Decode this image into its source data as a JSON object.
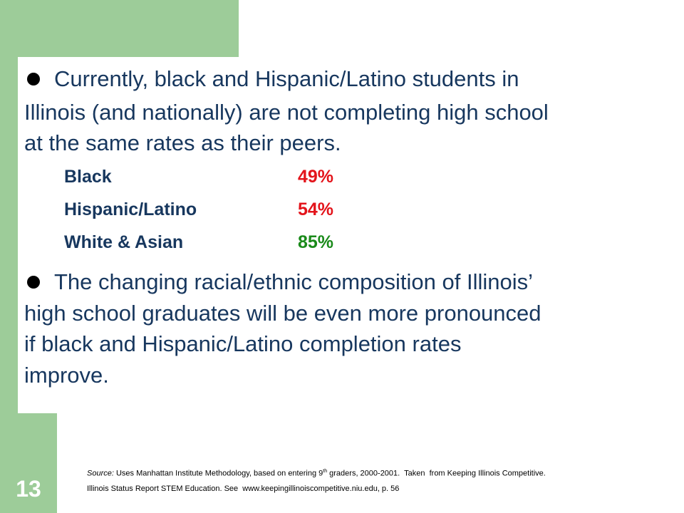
{
  "bullets": [
    {
      "lines": [
        "Currently, black and Hispanic/Latino students in",
        "Illinois (and nationally) are not completing high school",
        "at the same rates as their peers."
      ]
    },
    {
      "lines": [
        "The changing racial/ethnic composition of Illinois’",
        "high school graduates will be even more pronounced",
        "if black and Hispanic/Latino completion rates",
        "improve."
      ]
    }
  ],
  "table": {
    "rows": [
      [
        "Black",
        "49%"
      ],
      [
        "Hispanic/Latino",
        "54%"
      ],
      [
        "White & Asian",
        "85%"
      ]
    ]
  },
  "source": {
    "label": "Source:",
    "line1a": "Uses Manhattan Institute Methodology, based on entering 9",
    "sup": "th",
    "line1b": " graders, 2000-2001.  Taken  from Keeping Illinois Competitive.",
    "line2": "Illinois Status Report STEM Education. See  www.keepingillinoiscompetitive.niu.edu, p. 56"
  },
  "slide_number": "13"
}
